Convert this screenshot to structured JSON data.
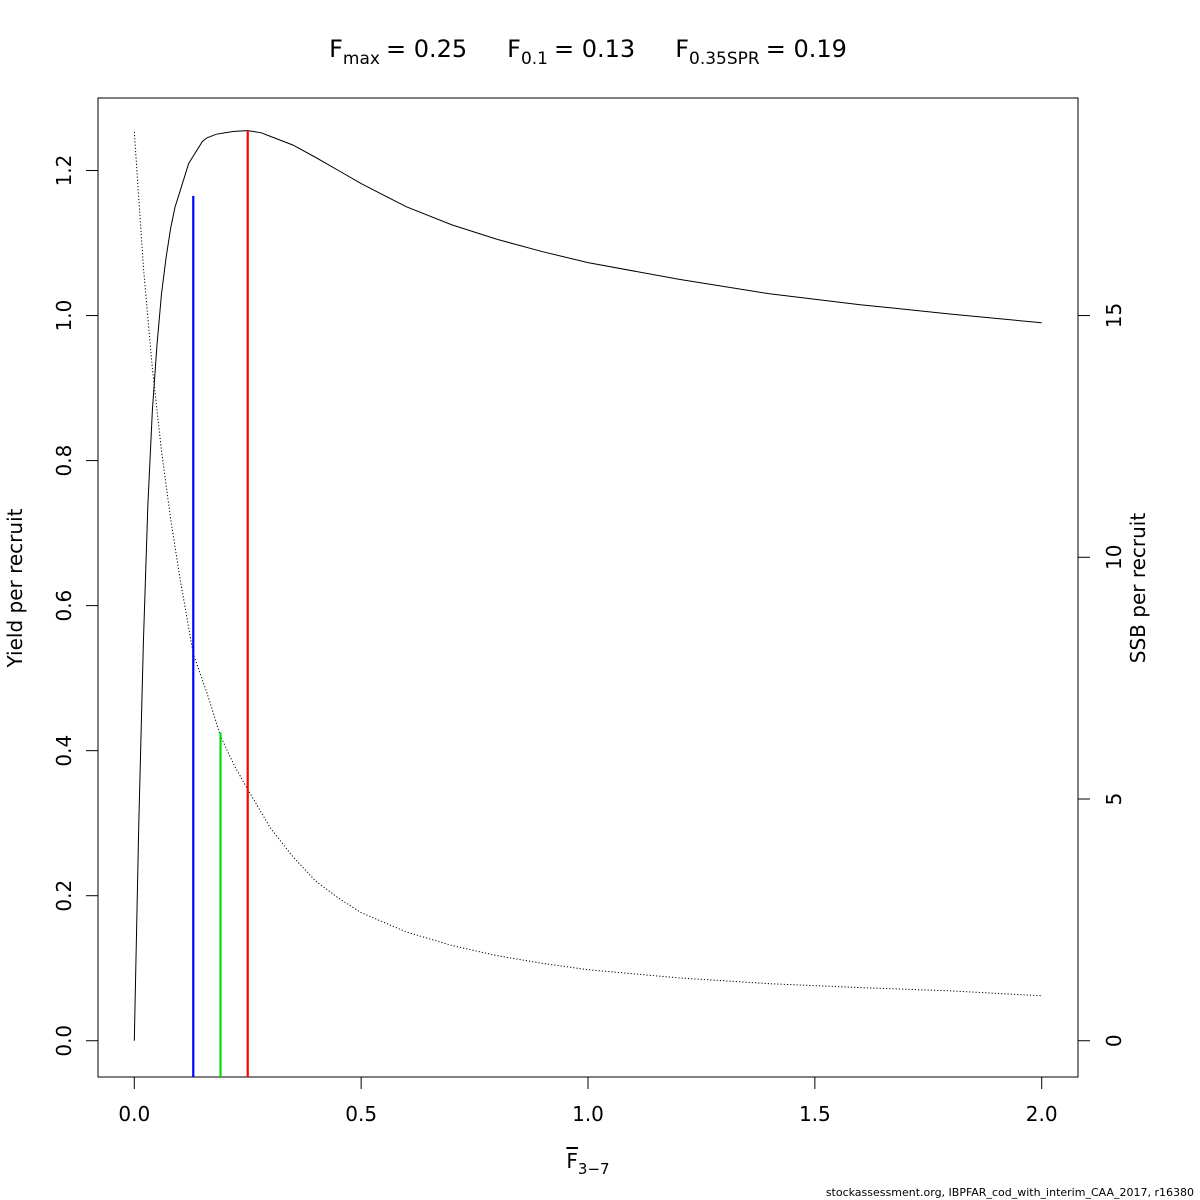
{
  "chart_data": {
    "type": "line",
    "title_parts": [
      {
        "sym": "F",
        "sub": "max",
        "eq": "= 0.25"
      },
      {
        "sym": "F",
        "sub": "0.1",
        "eq": "= 0.13"
      },
      {
        "sym": "F",
        "sub": "0.35SPR",
        "eq": "= 0.19"
      }
    ],
    "xlabel": {
      "sym": "F",
      "sub": "3−7"
    },
    "ylabel_left": "Yield per recruit",
    "ylabel_right": "SSB per recruit",
    "xlim": [
      -0.08,
      2.08
    ],
    "ylim_left": [
      -0.05,
      1.3
    ],
    "ylim_right": [
      -0.75,
      19.5
    ],
    "x_ticks": [
      0.0,
      0.5,
      1.0,
      1.5,
      2.0
    ],
    "x_tick_labels": [
      "0.0",
      "0.5",
      "1.0",
      "1.5",
      "2.0"
    ],
    "y_left_ticks": [
      0.0,
      0.2,
      0.4,
      0.6,
      0.8,
      1.0,
      1.2
    ],
    "y_left_tick_labels": [
      "0.0",
      "0.2",
      "0.4",
      "0.6",
      "0.8",
      "1.0",
      "1.2"
    ],
    "y_right_ticks": [
      0,
      5,
      10,
      15
    ],
    "y_right_tick_labels": [
      "0",
      "5",
      "10",
      "15"
    ],
    "series": [
      {
        "name": "Yield per recruit",
        "axis": "left",
        "style": "solid",
        "color": "#000000",
        "x": [
          0.0,
          0.01,
          0.02,
          0.03,
          0.04,
          0.05,
          0.06,
          0.07,
          0.08,
          0.09,
          0.1,
          0.11,
          0.12,
          0.13,
          0.14,
          0.15,
          0.16,
          0.18,
          0.2,
          0.22,
          0.25,
          0.28,
          0.3,
          0.35,
          0.4,
          0.45,
          0.5,
          0.6,
          0.7,
          0.8,
          0.9,
          1.0,
          1.2,
          1.4,
          1.6,
          1.8,
          2.0
        ],
        "y": [
          0.0,
          0.3,
          0.55,
          0.74,
          0.87,
          0.96,
          1.03,
          1.08,
          1.12,
          1.15,
          1.17,
          1.19,
          1.21,
          1.22,
          1.23,
          1.24,
          1.245,
          1.25,
          1.252,
          1.254,
          1.255,
          1.252,
          1.247,
          1.235,
          1.218,
          1.2,
          1.182,
          1.15,
          1.125,
          1.105,
          1.088,
          1.073,
          1.05,
          1.03,
          1.015,
          1.002,
          0.99
        ]
      },
      {
        "name": "SSB per recruit",
        "axis": "right",
        "style": "dotted",
        "color": "#000000",
        "x": [
          0.0,
          0.02,
          0.04,
          0.06,
          0.08,
          0.1,
          0.13,
          0.16,
          0.19,
          0.22,
          0.25,
          0.3,
          0.35,
          0.4,
          0.45,
          0.5,
          0.6,
          0.7,
          0.8,
          0.9,
          1.0,
          1.2,
          1.4,
          1.6,
          1.8,
          2.0
        ],
        "y": [
          18.8,
          16.0,
          13.9,
          12.2,
          10.8,
          9.6,
          8.0,
          7.2,
          6.3,
          5.7,
          5.2,
          4.4,
          3.8,
          3.3,
          2.95,
          2.65,
          2.25,
          1.97,
          1.76,
          1.6,
          1.47,
          1.3,
          1.18,
          1.1,
          1.03,
          0.93
        ]
      }
    ],
    "reference_lines": [
      {
        "name": "F0.1",
        "x": 0.13,
        "ytop": 1.165,
        "color": "#0000ff"
      },
      {
        "name": "F0.35SPR",
        "x": 0.19,
        "ytop": 0.425,
        "color": "#00e000"
      },
      {
        "name": "Fmax",
        "x": 0.25,
        "ytop": 1.255,
        "color": "#ff0000"
      }
    ],
    "footnote": "stockassessment.org, IBPFAR_cod_with_interim_CAA_2017, r16380"
  }
}
